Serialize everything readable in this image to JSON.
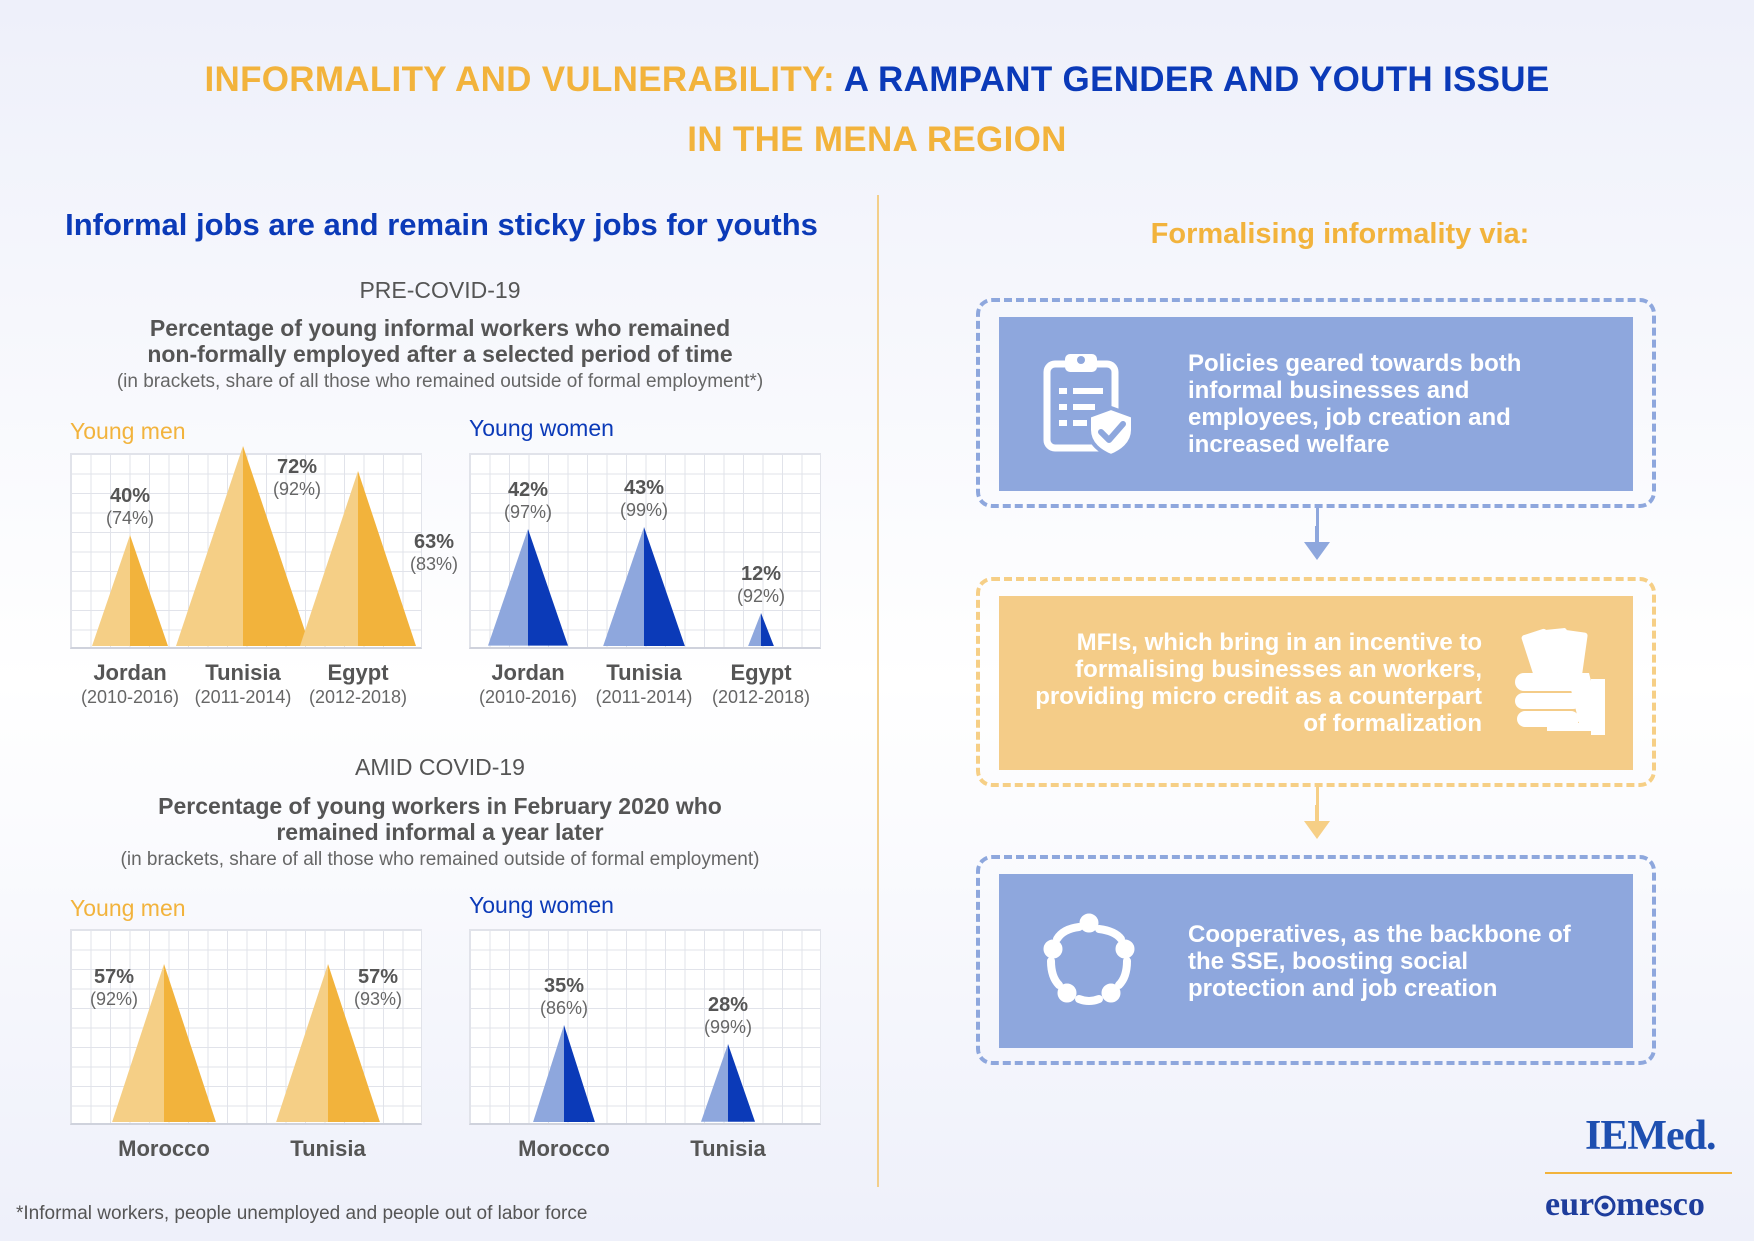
{
  "header": {
    "title_part1": "INFORMALITY AND VULNERABILITY:",
    "title_part2": "A RAMPANT GENDER AND YOUTH ISSUE",
    "title_line2": "IN THE MENA REGION"
  },
  "left": {
    "subtitle": "Informal jobs are and remain sticky jobs for youths",
    "pre": {
      "label": "PRE-COVID-19",
      "title_line1": "Percentage of young informal workers who remained",
      "title_line2": "non-formally employed after a selected period of time",
      "note": "(in brackets, share of all those who remained outside of formal employment*)"
    },
    "amid": {
      "label": "AMID COVID-19",
      "title_line1": "Percentage of young workers in February 2020 who",
      "title_line2": "remained informal a year later",
      "note": "(in brackets, share of all those who remained outside of formal employment)"
    }
  },
  "colors": {
    "men_light": "#f5cf86",
    "men_dark": "#f2b33c",
    "women_light": "#8ea7dd",
    "women_dark": "#0b3ab8"
  },
  "chart_data": [
    {
      "type": "bar",
      "subtype": "triangle",
      "section": "PRE-COVID-19",
      "title": "Young men",
      "categories": [
        "Jordan",
        "Tunisia",
        "Egypt"
      ],
      "periods": [
        "(2010-2016)",
        "(2011-2014)",
        "(2012-2018)"
      ],
      "values": [
        40,
        72,
        63
      ],
      "value_labels": [
        "40%",
        "72%",
        "63%"
      ],
      "bracket_values": [
        74,
        92,
        83
      ],
      "bracket_labels": [
        "(74%)",
        "(92%)",
        "(83%)"
      ],
      "ylim": [
        0,
        72
      ]
    },
    {
      "type": "bar",
      "subtype": "triangle",
      "section": "PRE-COVID-19",
      "title": "Young women",
      "categories": [
        "Jordan",
        "Tunisia",
        "Egypt"
      ],
      "periods": [
        "(2010-2016)",
        "(2011-2014)",
        "(2012-2018)"
      ],
      "values": [
        42,
        43,
        12
      ],
      "value_labels": [
        "42%",
        "43%",
        "12%"
      ],
      "bracket_values": [
        97,
        99,
        92
      ],
      "bracket_labels": [
        "(97%)",
        "(99%)",
        "(92%)"
      ],
      "ylim": [
        0,
        72
      ]
    },
    {
      "type": "bar",
      "subtype": "triangle",
      "section": "AMID COVID-19",
      "title": "Young men",
      "categories": [
        "Morocco",
        "Tunisia"
      ],
      "values": [
        57,
        57
      ],
      "value_labels": [
        "57%",
        "57%"
      ],
      "bracket_values": [
        92,
        93
      ],
      "bracket_labels": [
        "(92%)",
        "(93%)"
      ],
      "ylim": [
        0,
        72
      ]
    },
    {
      "type": "bar",
      "subtype": "triangle",
      "section": "AMID COVID-19",
      "title": "Young women",
      "categories": [
        "Morocco",
        "Tunisia"
      ],
      "values": [
        35,
        28
      ],
      "value_labels": [
        "35%",
        "28%"
      ],
      "bracket_values": [
        86,
        99
      ],
      "bracket_labels": [
        "(86%)",
        "(99%)"
      ],
      "ylim": [
        0,
        72
      ]
    }
  ],
  "right": {
    "title": "Formalising informality via:",
    "cards": [
      {
        "text": "Policies geared towards both informal businesses and employees, job creation and increased welfare",
        "icon": "clipboard-shield-icon"
      },
      {
        "text": "MFIs, which bring in an incentive to formalising businesses an workers, providing micro credit as a counterpart of formalization",
        "icon": "hand-money-icon"
      },
      {
        "text": "Cooperatives, as the backbone of the SSE, boosting social protection and job creation",
        "icon": "people-circle-icon"
      }
    ]
  },
  "footnote": "*Informal workers, people unemployed and people out of labor force",
  "logos": {
    "iemed": "IEMed.",
    "euromesco_pre": "eur",
    "euromesco_post": "mesco"
  }
}
